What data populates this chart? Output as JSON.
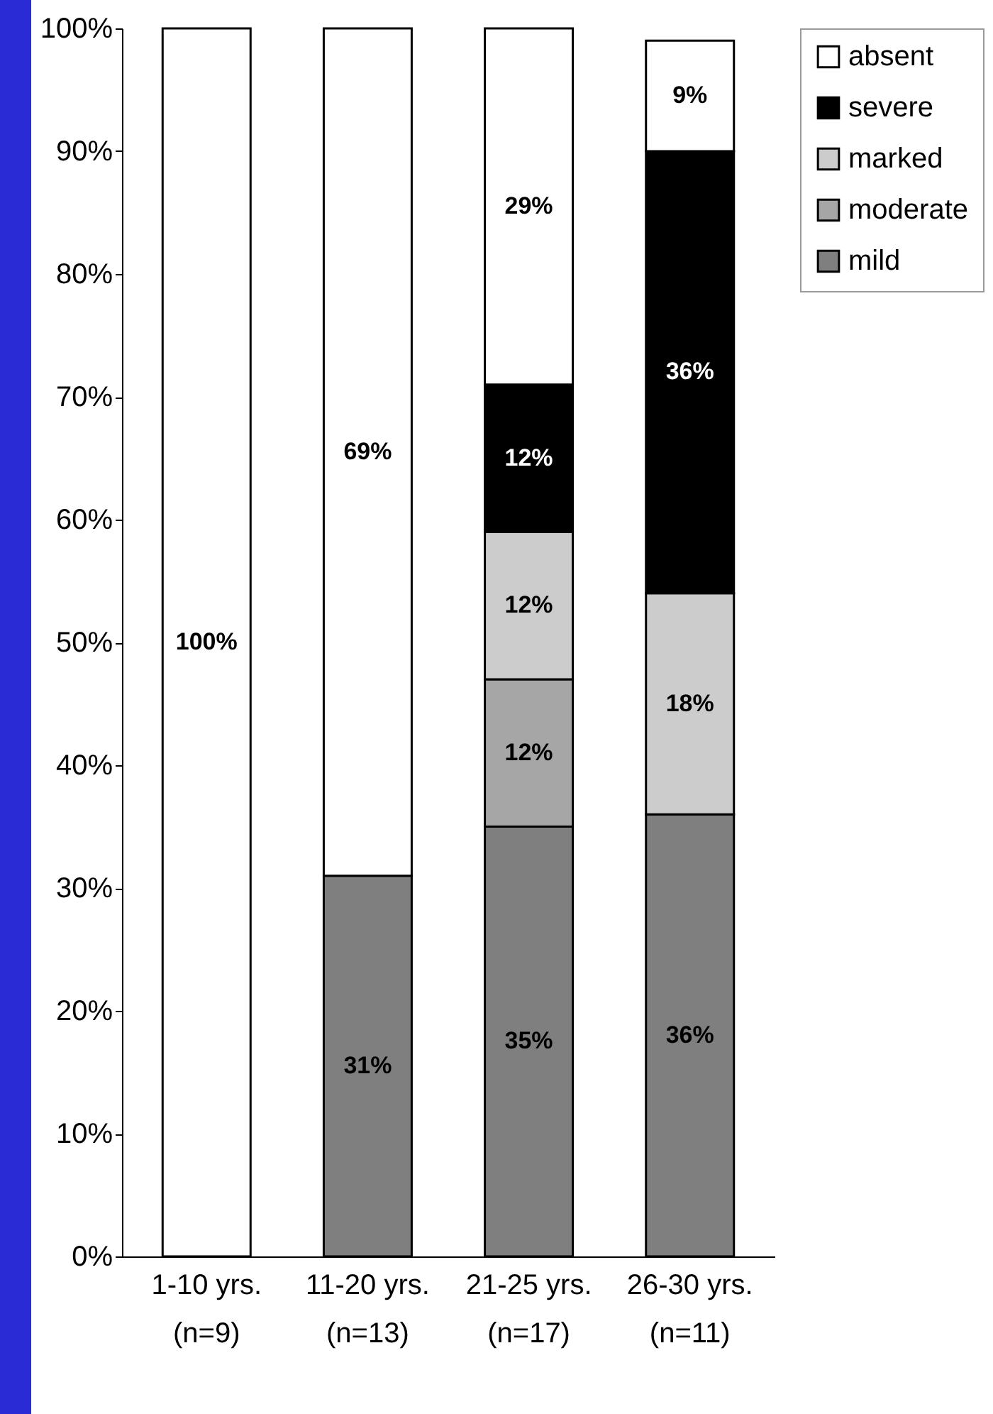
{
  "chart_data": {
    "type": "bar",
    "stacked": true,
    "categories": [
      "1-10 yrs.\n(n=9)",
      "11-20 yrs.\n(n=13)",
      "21-25 yrs.\n(n=17)",
      "26-30 yrs.\n(n=11)"
    ],
    "series": [
      {
        "name": "mild",
        "color": "#7f7f7f",
        "values": [
          null,
          31,
          35,
          36
        ],
        "value_labels": [
          null,
          "31%",
          "35%",
          "36%"
        ]
      },
      {
        "name": "moderate",
        "color": "#a6a6a6",
        "values": [
          null,
          null,
          12,
          null
        ],
        "value_labels": [
          null,
          null,
          "12%",
          null
        ]
      },
      {
        "name": "marked",
        "color": "#cccccc",
        "values": [
          null,
          null,
          12,
          18
        ],
        "value_labels": [
          null,
          null,
          "12%",
          "18%"
        ]
      },
      {
        "name": "severe",
        "color": "#000000",
        "values": [
          null,
          null,
          12,
          36
        ],
        "value_labels": [
          null,
          null,
          "12%",
          "36%"
        ]
      },
      {
        "name": "absent",
        "color": "#ffffff",
        "values": [
          100,
          69,
          29,
          9
        ],
        "value_labels": [
          "100%",
          "69%",
          "29%",
          "9%"
        ]
      }
    ],
    "ylim": [
      0,
      100
    ],
    "yticks": [
      {
        "value": 0,
        "label": "0%"
      },
      {
        "value": 10,
        "label": "10%"
      },
      {
        "value": 20,
        "label": "20%"
      },
      {
        "value": 30,
        "label": "30%"
      },
      {
        "value": 40,
        "label": "40%"
      },
      {
        "value": 50,
        "label": "50%"
      },
      {
        "value": 60,
        "label": "60%"
      },
      {
        "value": 70,
        "label": "70%"
      },
      {
        "value": 80,
        "label": "80%"
      },
      {
        "value": 90,
        "label": "90%"
      },
      {
        "value": 100,
        "label": "100%"
      }
    ],
    "legend": "top right",
    "grid": false
  }
}
